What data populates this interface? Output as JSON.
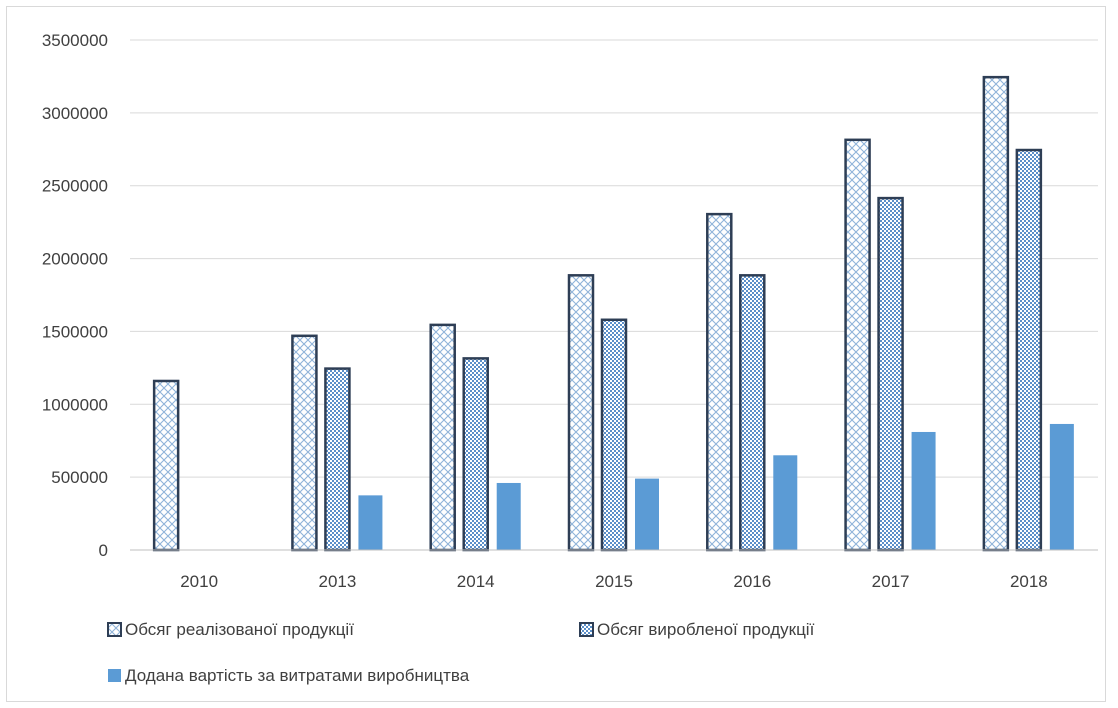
{
  "chart_data": {
    "type": "bar",
    "title": "",
    "xlabel": "",
    "ylabel": "",
    "categories": [
      "2010",
      "2013",
      "2014",
      "2015",
      "2016",
      "2017",
      "2018"
    ],
    "ylim": [
      0,
      3500000
    ],
    "yticks": [
      0,
      500000,
      1000000,
      1500000,
      2000000,
      2500000,
      3000000,
      3500000
    ],
    "grid": true,
    "legend_position": "bottom",
    "series": [
      {
        "name": "Обсяг реалізованої продукції",
        "values": [
          1160000,
          1470000,
          1545000,
          1885000,
          2305000,
          2815000,
          3245000
        ],
        "color": "#2e3e55",
        "pattern": "diagonal-cross"
      },
      {
        "name": "Обсяг виробленої продукції",
        "values": [
          null,
          1245000,
          1315000,
          1580000,
          1885000,
          2415000,
          2745000
        ],
        "color": "#2e3e55",
        "pattern": "checker"
      },
      {
        "name": "Додана вартість за витратами виробництва",
        "values": [
          null,
          375000,
          460000,
          490000,
          650000,
          810000,
          865000
        ],
        "color": "#5b9bd5",
        "pattern": "solid"
      }
    ]
  }
}
